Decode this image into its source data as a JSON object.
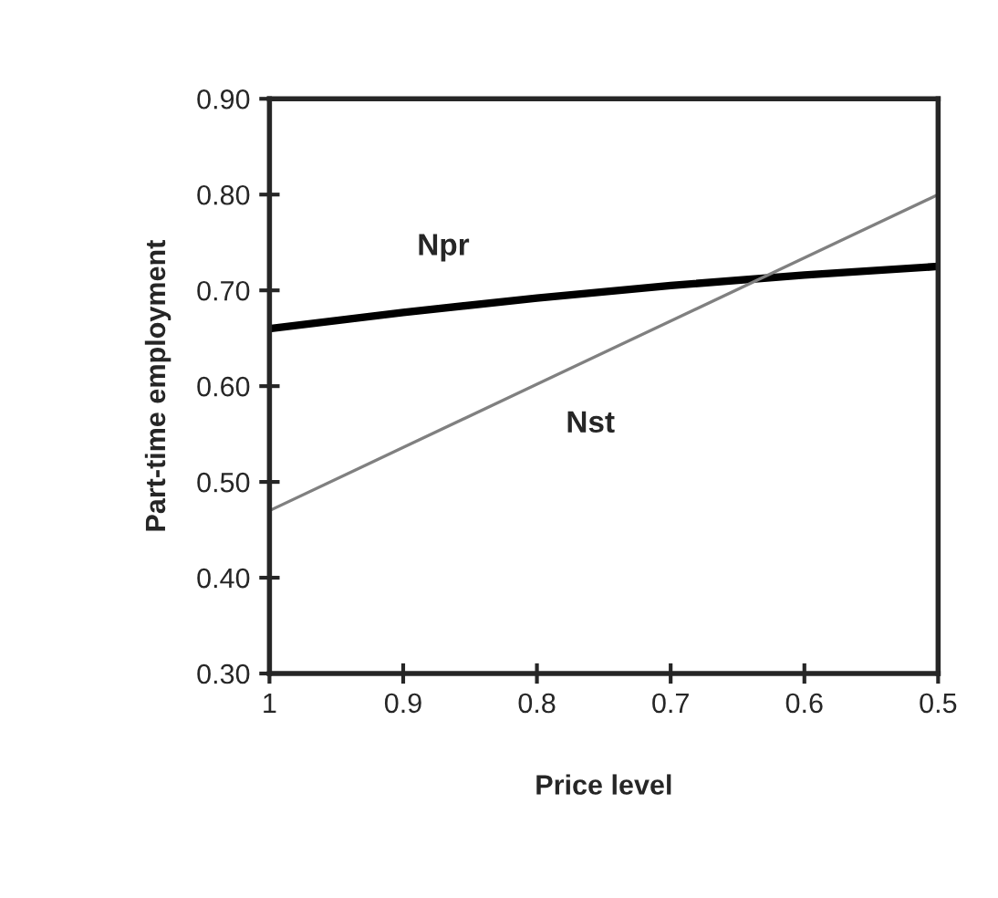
{
  "chart_data": {
    "type": "line",
    "xlabel": "Price level",
    "ylabel": "Part-time employment",
    "x": [
      1,
      0.9,
      0.8,
      0.7,
      0.6,
      0.5
    ],
    "series": [
      {
        "name": "Npr",
        "color": "#000000",
        "values": [
          0.66,
          0.677,
          0.692,
          0.705,
          0.716,
          0.725
        ]
      },
      {
        "name": "Nst",
        "color": "#808080",
        "values": [
          0.47,
          0.536,
          0.602,
          0.668,
          0.734,
          0.8
        ]
      }
    ],
    "xlim": [
      1,
      0.5
    ],
    "xticks": [
      1,
      0.9,
      0.8,
      0.7,
      0.6,
      0.5
    ],
    "ylim": [
      0.3,
      0.9
    ],
    "yticks": [
      {
        "value": 0.3,
        "label": "0.30"
      },
      {
        "value": 0.4,
        "label": "0.40"
      },
      {
        "value": 0.5,
        "label": "0.50"
      },
      {
        "value": 0.6,
        "label": "0.60"
      },
      {
        "value": 0.7,
        "label": "0.70"
      },
      {
        "value": 0.8,
        "label": "0.80"
      },
      {
        "value": 0.9,
        "label": "0.90"
      }
    ],
    "grid": false,
    "legend": false,
    "marker": "none",
    "line_style": "solid"
  }
}
